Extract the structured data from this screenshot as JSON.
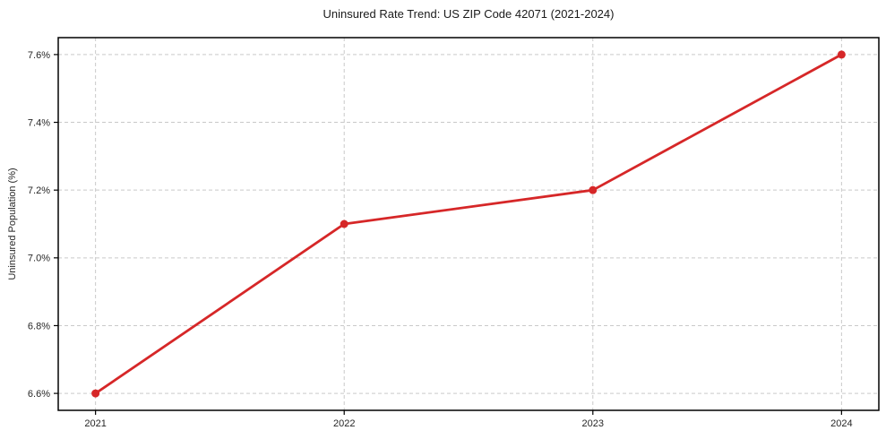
{
  "chart_data": {
    "type": "line",
    "title": "Uninsured Rate Trend: US ZIP Code 42071 (2021-2024)",
    "xlabel": "",
    "ylabel": "Uninsured Population (%)",
    "x": [
      2021,
      2022,
      2023,
      2024
    ],
    "values": [
      6.6,
      7.1,
      7.2,
      7.6
    ],
    "x_tick_labels": [
      "2021",
      "2022",
      "2023",
      "2024"
    ],
    "y_ticks": [
      6.6,
      6.8,
      7.0,
      7.2,
      7.4,
      7.6
    ],
    "y_tick_labels": [
      "6.6%",
      "6.8%",
      "7.0%",
      "7.2%",
      "7.4%",
      "7.6%"
    ],
    "xlim": [
      2020.85,
      2024.15
    ],
    "ylim": [
      6.55,
      7.65
    ],
    "grid": true,
    "legend": "none",
    "marker": "circle"
  },
  "colors": {
    "line": "#d62728",
    "marker": "#d62728",
    "grid": "#c9c9c9",
    "spine": "#000000",
    "text": "#262626",
    "background": "#ffffff"
  }
}
